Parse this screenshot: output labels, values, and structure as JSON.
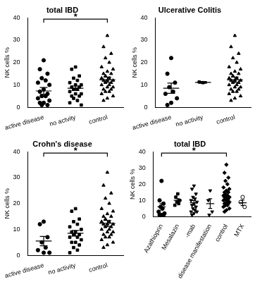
{
  "chart_data": [
    {
      "type": "scatter",
      "title": "total IBD",
      "y_label": "NK cells %",
      "color": "#000000",
      "categories": [
        "active disease",
        "no actvity",
        "control"
      ],
      "groups": [
        {
          "marker": "circle",
          "values": [
            21,
            17,
            15,
            13,
            12,
            11,
            10,
            8,
            7,
            6,
            5,
            5,
            4,
            3,
            2,
            2,
            1,
            1
          ],
          "mean": 7.3,
          "error": 1.5
        },
        {
          "marker": "square",
          "values": [
            18,
            17,
            14,
            13,
            12,
            11,
            10,
            10,
            9,
            9,
            8,
            8,
            7,
            6,
            6,
            5,
            5,
            4,
            3,
            2,
            1
          ],
          "mean": 8.5,
          "error": 1.0
        },
        {
          "marker": "triangle",
          "values": [
            32,
            27,
            24,
            22,
            20,
            18,
            17,
            16,
            15,
            15,
            14,
            13,
            13,
            12,
            12,
            12,
            11,
            11,
            10,
            10,
            9,
            9,
            8,
            8,
            7,
            7,
            6,
            5,
            4,
            3
          ],
          "mean": 12.3,
          "error": 1.2
        }
      ],
      "significance": [
        {
          "from": "active disease",
          "to": "control",
          "label": "*"
        }
      ],
      "ylim": [
        0,
        40
      ],
      "yticks": [
        0,
        10,
        20,
        30,
        40
      ],
      "grid": false
    },
    {
      "type": "scatter",
      "title": "Ulcerative Colitis",
      "y_label": "NK cells %",
      "color": "#000000",
      "categories": [
        "active disease",
        "no activity",
        "control"
      ],
      "groups": [
        {
          "marker": "circle",
          "values": [
            22,
            15,
            11,
            9,
            7,
            6,
            4,
            2,
            1
          ],
          "mean": 8.5,
          "error": 2.3
        },
        {
          "marker": "square",
          "values": [
            11,
            11.3
          ],
          "mean": 11.1,
          "error": 0.4
        },
        {
          "marker": "triangle",
          "values": [
            32,
            27,
            24,
            22,
            20,
            18,
            17,
            16,
            15,
            15,
            14,
            13,
            13,
            12,
            12,
            12,
            11,
            11,
            10,
            10,
            9,
            9,
            8,
            8,
            7,
            7,
            6,
            5,
            4,
            3
          ],
          "mean": 12.3,
          "error": 1.2
        }
      ],
      "significance": [],
      "ylim": [
        0,
        40
      ],
      "yticks": [
        0,
        10,
        20,
        30,
        40
      ],
      "grid": false
    },
    {
      "type": "scatter",
      "title": "Crohn's disease",
      "y_label": "NK cells %",
      "color": "#000000",
      "categories": [
        "active disease",
        "no activity",
        "control"
      ],
      "groups": [
        {
          "marker": "circle",
          "values": [
            13,
            12,
            7,
            5,
            3,
            2,
            1,
            1
          ],
          "mean": 5.5,
          "error": 1.8
        },
        {
          "marker": "square",
          "values": [
            18,
            17,
            14,
            13,
            12,
            11,
            10,
            9,
            9,
            8,
            8,
            7,
            7,
            6,
            5,
            5,
            4,
            3,
            2,
            1
          ],
          "mean": 8.5,
          "error": 1.1
        },
        {
          "marker": "triangle",
          "values": [
            32,
            27,
            24,
            22,
            20,
            18,
            17,
            16,
            15,
            15,
            14,
            13,
            13,
            12,
            12,
            12,
            11,
            11,
            10,
            10,
            9,
            9,
            8,
            8,
            7,
            7,
            6,
            5,
            4,
            3
          ],
          "mean": 12.3,
          "error": 1.2
        }
      ],
      "significance": [
        {
          "from": "active disease",
          "to": "control",
          "label": "*"
        }
      ],
      "ylim": [
        0,
        40
      ],
      "yticks": [
        0,
        10,
        20,
        30,
        40
      ],
      "grid": false
    },
    {
      "type": "scatter",
      "title": "total IBD",
      "y_label": "NK cells %",
      "color": "#000000",
      "categories": [
        "Azathioprin",
        "Mesalazin",
        "-mab",
        "disease manifestation",
        "control",
        "MTX"
      ],
      "groups": [
        {
          "marker": "circle",
          "values": [
            22,
            10,
            8,
            6,
            5,
            3,
            2,
            1,
            1,
            0.5
          ],
          "mean": 6,
          "error": 2
        },
        {
          "marker": "square",
          "values": [
            14,
            12,
            10,
            9,
            8,
            7
          ],
          "mean": 10,
          "error": 1
        },
        {
          "marker": "triangle-down",
          "values": [
            19,
            17,
            14,
            12,
            11,
            10,
            9,
            8,
            7,
            6,
            5,
            4,
            3,
            3,
            2,
            1
          ],
          "mean": 8.5,
          "error": 1.4
        },
        {
          "marker": "triangle-down",
          "values": [
            16,
            10,
            3,
            1
          ],
          "mean": 8,
          "error": 3
        },
        {
          "marker": "diamond",
          "values": [
            32,
            27,
            24,
            22,
            20,
            18,
            17,
            16,
            15,
            15,
            14,
            13,
            13,
            12,
            12,
            12,
            11,
            11,
            10,
            10,
            9,
            9,
            8,
            8,
            7,
            7,
            6,
            5,
            4,
            3
          ],
          "mean": 12.3,
          "error": 1.2
        },
        {
          "marker": "open-circle",
          "values": [
            12,
            9,
            6
          ],
          "mean": 8.5,
          "error": 1.7
        }
      ],
      "significance": [
        {
          "from": "Azathioprin",
          "to": "control",
          "label": "*"
        }
      ],
      "ylim": [
        0,
        40
      ],
      "yticks": [
        0,
        10,
        20,
        30,
        40
      ],
      "grid": false
    }
  ]
}
